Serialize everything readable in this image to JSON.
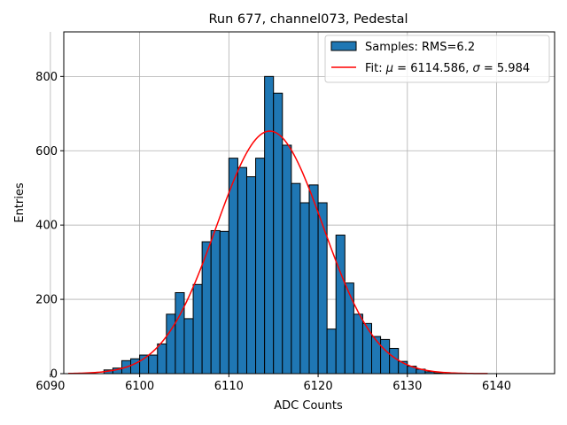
{
  "chart_data": {
    "type": "bar",
    "title": "Run 677, channel073, Pedestal",
    "xlabel": "ADC Counts",
    "ylabel": "Entries",
    "xlim": [
      6091.5,
      6146.5
    ],
    "ylim": [
      0,
      920
    ],
    "xticks": [
      6090,
      6100,
      6110,
      6120,
      6130,
      6140
    ],
    "yticks": [
      0,
      200,
      400,
      600,
      800
    ],
    "grid": true,
    "legend_position": "top-right",
    "bin_width": 1,
    "bins_start": [
      6096,
      6097,
      6098,
      6099,
      6100,
      6101,
      6102,
      6103,
      6104,
      6105,
      6106,
      6107,
      6108,
      6109,
      6110,
      6111,
      6112,
      6113,
      6114,
      6115,
      6116,
      6117,
      6118,
      6119,
      6120,
      6121,
      6122,
      6123,
      6124,
      6125,
      6126,
      6127,
      6128,
      6129,
      6130,
      6131,
      6132,
      6133
    ],
    "counts": [
      10,
      15,
      35,
      40,
      50,
      50,
      80,
      160,
      218,
      148,
      240,
      355,
      385,
      383,
      580,
      555,
      530,
      580,
      800,
      755,
      615,
      512,
      460,
      508,
      460,
      120,
      373,
      244,
      160,
      135,
      100,
      92,
      68,
      33,
      20,
      12,
      5,
      2
    ],
    "series": [
      {
        "name": "Samples: RMS=6.2",
        "kind": "histogram",
        "color": "#1f77b4",
        "edge_color": "#000000"
      },
      {
        "name": "Fit: μ = 6114.586, σ = 5.984",
        "kind": "gaussian",
        "mu": 6114.586,
        "sigma": 5.984,
        "amplitude": 653,
        "x_range": [
          6092,
          6139
        ],
        "color": "#ff0000"
      }
    ],
    "legend": {
      "samples_label": "Samples: RMS=6.2",
      "fit_label_prefix": "Fit: ",
      "fit_mu_symbol": "μ",
      "fit_mu_value": " = 6114.586, ",
      "fit_sigma_symbol": "σ",
      "fit_sigma_value": " = 5.984"
    }
  },
  "colors": {
    "bar_fill": "#1f77b4",
    "bar_edge": "#000000",
    "fit_line": "#ff0000",
    "grid": "#b0b0b0",
    "axes": "#000000"
  }
}
